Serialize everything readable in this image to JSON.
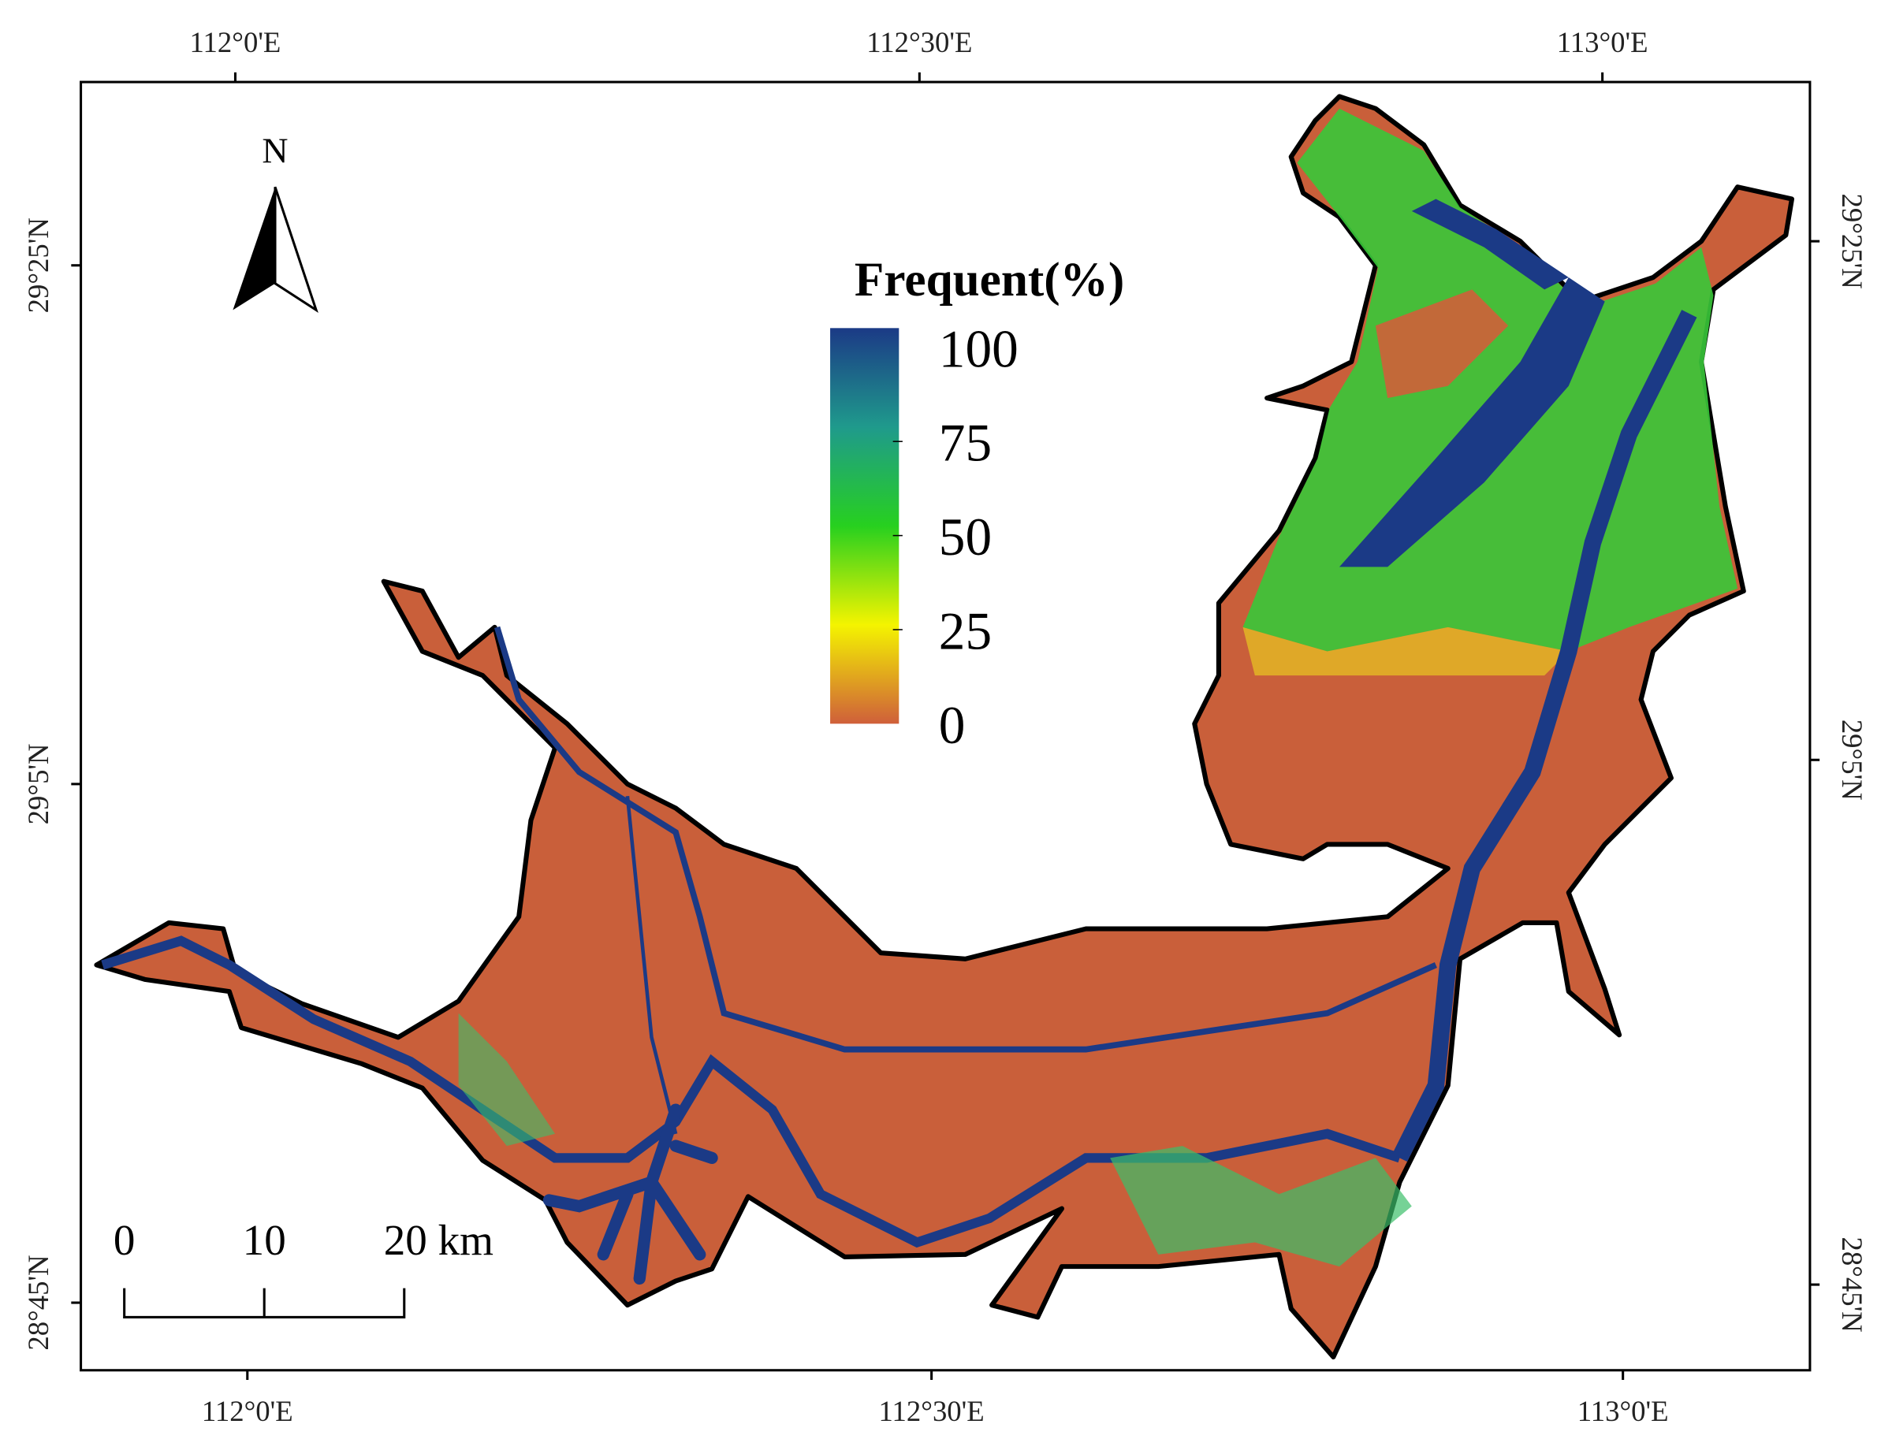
{
  "axes": {
    "top": [
      "112°0'E",
      "112°30'E",
      "113°0'E"
    ],
    "bottom": [
      "112°0'E",
      "112°30'E",
      "113°0'E"
    ],
    "left": [
      "29°25'N",
      "29°5'N",
      "28°45'N"
    ],
    "right": [
      "29°25'N",
      "29°5'N",
      "28°45'N"
    ]
  },
  "north_arrow": {
    "label": "N"
  },
  "legend": {
    "title": "Frequent(%)",
    "ticks": [
      100,
      75,
      50,
      25,
      0
    ]
  },
  "scale_bar": {
    "labels": [
      "0",
      "10",
      "20 km"
    ]
  }
}
